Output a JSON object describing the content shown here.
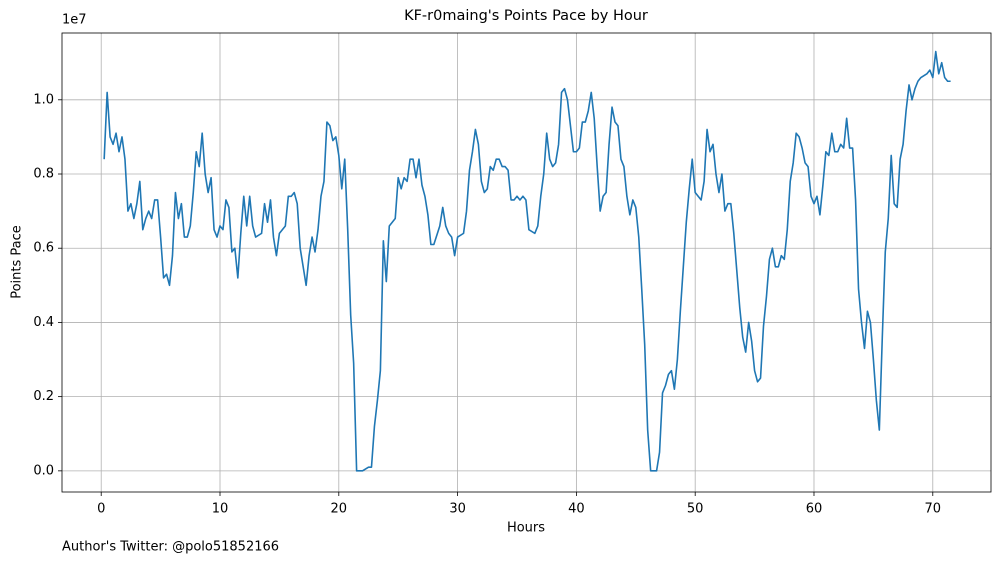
{
  "chart_data": {
    "type": "line",
    "title": "KF-r0maing's Points Pace by Hour",
    "x_label": "Hours",
    "y_label": "Points Pace",
    "y_offset_label": "1e7",
    "footer": "Author's Twitter: @polo51852166",
    "color": "#1f77b4",
    "grid": true,
    "xlim": [
      -3.3,
      74.9
    ],
    "ylim": [
      -0.057,
      1.18
    ],
    "xticks": [
      0,
      10,
      20,
      30,
      40,
      50,
      60,
      70
    ],
    "yticks": [
      {
        "value": 0,
        "label": "0.0"
      },
      0.2,
      0.4,
      0.6,
      0.8,
      {
        "value": 1,
        "label": "1.0"
      }
    ],
    "x": [
      0.25,
      0.5,
      0.75,
      1,
      1.25,
      1.5,
      1.75,
      2,
      2.25,
      2.5,
      2.75,
      3,
      3.25,
      3.5,
      3.75,
      4,
      4.25,
      4.5,
      4.75,
      5,
      5.25,
      5.5,
      5.75,
      6,
      6.25,
      6.5,
      6.75,
      7,
      7.25,
      7.5,
      7.75,
      8,
      8.25,
      8.5,
      8.75,
      9,
      9.25,
      9.5,
      9.75,
      10,
      10.25,
      10.5,
      10.75,
      11,
      11.25,
      11.5,
      11.75,
      12,
      12.25,
      12.5,
      12.75,
      13,
      13.5,
      13.75,
      14,
      14.25,
      14.5,
      14.75,
      15,
      15.5,
      15.75,
      16,
      16.25,
      16.5,
      16.75,
      17,
      17.25,
      17.5,
      17.75,
      18,
      18.25,
      18.5,
      18.75,
      19,
      19.25,
      19.5,
      19.75,
      20,
      20.25,
      20.5,
      20.75,
      21,
      21.25,
      21.5,
      22,
      22.5,
      22.75,
      23,
      23.25,
      23.5,
      23.75,
      24,
      24.25,
      24.75,
      25,
      25.25,
      25.5,
      25.75,
      26,
      26.25,
      26.5,
      26.75,
      27,
      27.25,
      27.5,
      27.75,
      28,
      28.5,
      28.75,
      29,
      29.25,
      29.5,
      29.75,
      30,
      30.5,
      30.75,
      31,
      31.25,
      31.5,
      31.75,
      32,
      32.25,
      32.5,
      32.75,
      33,
      33.25,
      33.5,
      33.75,
      34,
      34.25,
      34.5,
      34.75,
      35,
      35.25,
      35.5,
      35.75,
      36,
      36.5,
      36.75,
      37,
      37.25,
      37.5,
      37.75,
      38,
      38.25,
      38.5,
      38.75,
      39,
      39.25,
      39.5,
      39.75,
      40,
      40.25,
      40.5,
      40.75,
      41,
      41.25,
      41.5,
      41.75,
      42,
      42.25,
      42.5,
      42.75,
      43,
      43.25,
      43.5,
      43.75,
      44,
      44.25,
      44.5,
      44.75,
      45,
      45.25,
      45.5,
      45.75,
      46,
      46.25,
      46.75,
      47,
      47.25,
      47.5,
      47.75,
      48,
      48.25,
      48.5,
      48.75,
      49,
      49.25,
      49.5,
      49.75,
      50,
      50.5,
      50.75,
      51,
      51.25,
      51.5,
      51.75,
      52,
      52.25,
      52.5,
      52.75,
      53,
      53.25,
      53.5,
      53.75,
      54,
      54.25,
      54.5,
      54.75,
      55,
      55.25,
      55.5,
      55.75,
      56,
      56.25,
      56.5,
      56.75,
      57,
      57.25,
      57.5,
      57.75,
      58,
      58.25,
      58.5,
      58.75,
      59,
      59.25,
      59.5,
      59.75,
      60,
      60.25,
      60.5,
      60.75,
      61,
      61.25,
      61.5,
      61.75,
      62,
      62.25,
      62.5,
      62.75,
      63,
      63.25,
      63.5,
      63.75,
      64,
      64.25,
      64.5,
      64.75,
      65,
      65.25,
      65.5,
      65.75,
      66,
      66.25,
      66.5,
      66.75,
      67,
      67.25,
      67.5,
      67.75,
      68,
      68.25,
      68.5,
      68.75,
      69,
      69.25,
      69.5,
      69.75,
      70,
      70.25,
      70.5,
      70.75,
      71,
      71.25,
      71.5
    ],
    "values": [
      0.84,
      1.02,
      0.9,
      0.88,
      0.91,
      0.86,
      0.9,
      0.84,
      0.7,
      0.72,
      0.68,
      0.72,
      0.78,
      0.65,
      0.68,
      0.7,
      0.68,
      0.73,
      0.73,
      0.63,
      0.52,
      0.53,
      0.5,
      0.58,
      0.75,
      0.68,
      0.72,
      0.63,
      0.63,
      0.66,
      0.75,
      0.86,
      0.82,
      0.91,
      0.8,
      0.75,
      0.79,
      0.65,
      0.63,
      0.66,
      0.65,
      0.73,
      0.71,
      0.59,
      0.6,
      0.52,
      0.64,
      0.74,
      0.66,
      0.74,
      0.66,
      0.63,
      0.64,
      0.72,
      0.67,
      0.73,
      0.63,
      0.58,
      0.64,
      0.66,
      0.74,
      0.74,
      0.75,
      0.72,
      0.6,
      0.55,
      0.5,
      0.58,
      0.63,
      0.59,
      0.65,
      0.74,
      0.78,
      0.94,
      0.93,
      0.89,
      0.9,
      0.85,
      0.76,
      0.84,
      0.65,
      0.42,
      0.29,
      0.0,
      0.0,
      0.01,
      0.01,
      0.12,
      0.19,
      0.27,
      0.62,
      0.51,
      0.66,
      0.68,
      0.79,
      0.76,
      0.79,
      0.78,
      0.84,
      0.84,
      0.79,
      0.84,
      0.77,
      0.74,
      0.69,
      0.61,
      0.61,
      0.66,
      0.71,
      0.66,
      0.64,
      0.63,
      0.58,
      0.63,
      0.64,
      0.7,
      0.81,
      0.86,
      0.92,
      0.88,
      0.78,
      0.75,
      0.76,
      0.82,
      0.81,
      0.84,
      0.84,
      0.82,
      0.82,
      0.81,
      0.73,
      0.73,
      0.74,
      0.73,
      0.74,
      0.73,
      0.65,
      0.64,
      0.66,
      0.74,
      0.8,
      0.91,
      0.84,
      0.82,
      0.83,
      0.88,
      1.02,
      1.03,
      1.0,
      0.93,
      0.86,
      0.86,
      0.87,
      0.94,
      0.94,
      0.97,
      1.02,
      0.95,
      0.82,
      0.7,
      0.74,
      0.75,
      0.88,
      0.98,
      0.94,
      0.93,
      0.84,
      0.82,
      0.74,
      0.69,
      0.73,
      0.71,
      0.63,
      0.49,
      0.34,
      0.11,
      0.0,
      0.0,
      0.05,
      0.21,
      0.23,
      0.26,
      0.27,
      0.22,
      0.3,
      0.43,
      0.55,
      0.67,
      0.76,
      0.84,
      0.75,
      0.73,
      0.78,
      0.92,
      0.86,
      0.88,
      0.8,
      0.75,
      0.8,
      0.7,
      0.72,
      0.72,
      0.64,
      0.54,
      0.44,
      0.36,
      0.32,
      0.4,
      0.35,
      0.27,
      0.24,
      0.25,
      0.39,
      0.47,
      0.57,
      0.6,
      0.55,
      0.55,
      0.58,
      0.57,
      0.65,
      0.78,
      0.83,
      0.91,
      0.9,
      0.87,
      0.83,
      0.82,
      0.74,
      0.72,
      0.74,
      0.69,
      0.77,
      0.86,
      0.85,
      0.91,
      0.86,
      0.86,
      0.88,
      0.87,
      0.95,
      0.87,
      0.87,
      0.73,
      0.49,
      0.4,
      0.33,
      0.43,
      0.4,
      0.3,
      0.19,
      0.11,
      0.36,
      0.59,
      0.68,
      0.85,
      0.72,
      0.71,
      0.84,
      0.88,
      0.97,
      1.04,
      1.0,
      1.03,
      1.05,
      1.06,
      1.065,
      1.07,
      1.08,
      1.06,
      1.13,
      1.07,
      1.1,
      1.06,
      1.05,
      1.05
    ]
  }
}
